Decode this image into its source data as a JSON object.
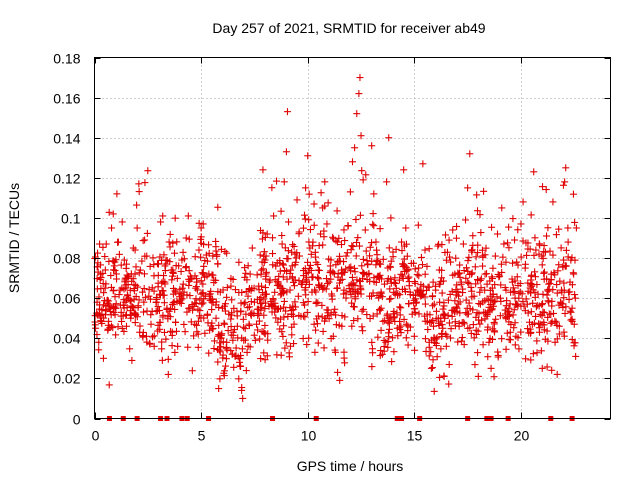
{
  "chart_data": {
    "type": "scatter",
    "title": "Day 257 of 2021, SRMTID for receiver ab49",
    "xlabel": "GPS time / hours",
    "ylabel": "SRMTID / TECUs",
    "xlim": [
      0,
      24.2
    ],
    "ylim": [
      0,
      0.18
    ],
    "xticks": [
      0,
      5,
      10,
      15,
      20
    ],
    "xtick_labels": [
      "0",
      "5",
      "10",
      "15",
      "20"
    ],
    "yticks": [
      0,
      0.02,
      0.04,
      0.06,
      0.08,
      0.1,
      0.12,
      0.14,
      0.16,
      0.18
    ],
    "ytick_labels": [
      "0",
      "0.02",
      "0.04",
      "0.06",
      "0.08",
      "0.1",
      "0.12",
      "0.14",
      "0.16",
      "0.18"
    ],
    "grid": true,
    "marker": "+",
    "marker_color": "#e00000",
    "data_extent": [
      0.0,
      22.6
    ],
    "zero_markers_x": [
      0.7,
      1.35,
      2.0,
      3.1,
      3.4,
      4.1,
      4.35,
      5.35,
      8.35,
      10.4,
      14.2,
      14.4,
      15.25,
      17.5,
      18.4,
      18.6,
      19.4,
      21.4,
      22.4
    ],
    "points": [
      [
        0.05,
        0.045
      ],
      [
        0.12,
        0.058
      ],
      [
        0.2,
        0.038
      ],
      [
        0.28,
        0.072
      ],
      [
        0.35,
        0.052
      ],
      [
        0.42,
        0.03
      ],
      [
        0.5,
        0.065
      ],
      [
        0.55,
        0.087
      ],
      [
        0.62,
        0.044
      ],
      [
        0.7,
        0.055
      ],
      [
        0.8,
        0.095
      ],
      [
        0.88,
        0.102
      ],
      [
        0.95,
        0.078
      ],
      [
        1.05,
        0.112
      ],
      [
        1.12,
        0.088
      ],
      [
        1.2,
        0.064
      ],
      [
        1.3,
        0.098
      ],
      [
        1.4,
        0.079
      ],
      [
        1.5,
        0.046
      ],
      [
        1.6,
        0.06
      ],
      [
        1.7,
        0.05
      ],
      [
        1.82,
        0.085
      ],
      [
        1.9,
        0.072
      ],
      [
        2.0,
        0.095
      ],
      [
        2.08,
        0.117
      ],
      [
        2.15,
        0.074
      ],
      [
        2.25,
        0.063
      ],
      [
        2.35,
        0.089
      ],
      [
        2.45,
        0.081
      ],
      [
        2.55,
        0.061
      ],
      [
        2.65,
        0.047
      ],
      [
        2.8,
        0.036
      ],
      [
        2.9,
        0.058
      ],
      [
        3.0,
        0.077
      ],
      [
        3.1,
        0.098
      ],
      [
        3.2,
        0.101
      ],
      [
        3.3,
        0.068
      ],
      [
        3.4,
        0.055
      ],
      [
        3.5,
        0.088
      ],
      [
        3.6,
        0.074
      ],
      [
        3.7,
        0.062
      ],
      [
        3.8,
        0.048
      ],
      [
        3.9,
        0.036
      ],
      [
        4.0,
        0.058
      ],
      [
        4.1,
        0.079
      ],
      [
        4.2,
        0.063
      ],
      [
        4.3,
        0.09
      ],
      [
        4.4,
        0.101
      ],
      [
        4.5,
        0.071
      ],
      [
        4.6,
        0.054
      ],
      [
        4.7,
        0.047
      ],
      [
        4.8,
        0.068
      ],
      [
        4.9,
        0.084
      ],
      [
        5.0,
        0.095
      ],
      [
        5.1,
        0.072
      ],
      [
        5.2,
        0.061
      ],
      [
        5.3,
        0.052
      ],
      [
        5.4,
        0.044
      ],
      [
        5.5,
        0.058
      ],
      [
        5.6,
        0.069
      ],
      [
        5.7,
        0.05
      ],
      [
        5.8,
        0.041
      ],
      [
        5.9,
        0.063
      ],
      [
        6.0,
        0.055
      ],
      [
        6.1,
        0.047
      ],
      [
        6.2,
        0.038
      ],
      [
        6.3,
        0.052
      ],
      [
        6.4,
        0.066
      ],
      [
        6.5,
        0.043
      ],
      [
        6.6,
        0.031
      ],
      [
        6.7,
        0.046
      ],
      [
        6.8,
        0.028
      ],
      [
        6.9,
        0.014
      ],
      [
        6.95,
        0.01
      ],
      [
        7.0,
        0.039
      ],
      [
        7.1,
        0.052
      ],
      [
        7.2,
        0.061
      ],
      [
        7.3,
        0.072
      ],
      [
        7.4,
        0.085
      ],
      [
        7.5,
        0.058
      ],
      [
        7.6,
        0.047
      ],
      [
        7.7,
        0.066
      ],
      [
        7.8,
        0.054
      ],
      [
        7.9,
        0.124
      ],
      [
        8.0,
        0.079
      ],
      [
        8.1,
        0.092
      ],
      [
        8.2,
        0.068
      ],
      [
        8.3,
        0.057
      ],
      [
        8.4,
        0.101
      ],
      [
        8.5,
        0.076
      ],
      [
        8.6,
        0.048
      ],
      [
        8.7,
        0.065
      ],
      [
        8.8,
        0.087
      ],
      [
        8.9,
        0.118
      ],
      [
        9.0,
        0.133
      ],
      [
        9.05,
        0.153
      ],
      [
        9.1,
        0.098
      ],
      [
        9.2,
        0.074
      ],
      [
        9.3,
        0.056
      ],
      [
        9.4,
        0.082
      ],
      [
        9.5,
        0.109
      ],
      [
        9.6,
        0.093
      ],
      [
        9.7,
        0.067
      ],
      [
        9.8,
        0.051
      ],
      [
        9.9,
        0.115
      ],
      [
        10.0,
        0.131
      ],
      [
        10.1,
        0.085
      ],
      [
        10.2,
        0.063
      ],
      [
        10.3,
        0.047
      ],
      [
        10.4,
        0.058
      ],
      [
        10.5,
        0.074
      ],
      [
        10.6,
        0.092
      ],
      [
        10.7,
        0.105
      ],
      [
        10.8,
        0.118
      ],
      [
        10.9,
        0.097
      ],
      [
        11.0,
        0.068
      ],
      [
        11.1,
        0.052
      ],
      [
        11.2,
        0.041
      ],
      [
        11.3,
        0.033
      ],
      [
        11.4,
        0.023
      ],
      [
        11.5,
        0.019
      ],
      [
        11.6,
        0.046
      ],
      [
        11.7,
        0.064
      ],
      [
        11.8,
        0.081
      ],
      [
        11.9,
        0.096
      ],
      [
        12.0,
        0.113
      ],
      [
        12.1,
        0.128
      ],
      [
        12.2,
        0.135
      ],
      [
        12.3,
        0.152
      ],
      [
        12.4,
        0.162
      ],
      [
        12.45,
        0.17
      ],
      [
        12.5,
        0.141
      ],
      [
        12.6,
        0.119
      ],
      [
        12.7,
        0.094
      ],
      [
        12.8,
        0.077
      ],
      [
        12.9,
        0.061
      ],
      [
        13.0,
        0.136
      ],
      [
        13.1,
        0.112
      ],
      [
        13.2,
        0.088
      ],
      [
        13.3,
        0.071
      ],
      [
        13.4,
        0.054
      ],
      [
        13.5,
        0.032
      ],
      [
        13.6,
        0.067
      ],
      [
        13.7,
        0.118
      ],
      [
        13.8,
        0.14
      ],
      [
        13.9,
        0.1
      ],
      [
        14.0,
        0.083
      ],
      [
        14.1,
        0.062
      ],
      [
        14.2,
        0.045
      ],
      [
        14.3,
        0.069
      ],
      [
        14.4,
        0.088
      ],
      [
        14.5,
        0.124
      ],
      [
        14.6,
        0.095
      ],
      [
        14.7,
        0.074
      ],
      [
        14.8,
        0.063
      ],
      [
        14.9,
        0.052
      ],
      [
        15.0,
        0.041
      ],
      [
        15.1,
        0.058
      ],
      [
        15.2,
        0.075
      ],
      [
        15.3,
        0.061
      ],
      [
        15.4,
        0.127
      ],
      [
        15.5,
        0.084
      ],
      [
        15.6,
        0.052
      ],
      [
        15.7,
        0.038
      ],
      [
        15.8,
        0.025
      ],
      [
        15.9,
        0.046
      ],
      [
        16.0,
        0.064
      ],
      [
        16.1,
        0.086
      ],
      [
        16.2,
        0.067
      ],
      [
        16.3,
        0.042
      ],
      [
        16.4,
        0.021
      ],
      [
        16.5,
        0.036
      ],
      [
        16.6,
        0.059
      ],
      [
        16.7,
        0.078
      ],
      [
        16.8,
        0.094
      ],
      [
        16.9,
        0.072
      ],
      [
        17.0,
        0.055
      ],
      [
        17.1,
        0.046
      ],
      [
        17.2,
        0.068
      ],
      [
        17.3,
        0.087
      ],
      [
        17.4,
        0.099
      ],
      [
        17.5,
        0.115
      ],
      [
        17.6,
        0.132
      ],
      [
        17.7,
        0.083
      ],
      [
        17.8,
        0.061
      ],
      [
        17.9,
        0.044
      ],
      [
        18.0,
        0.021
      ],
      [
        18.1,
        0.057
      ],
      [
        18.2,
        0.076
      ],
      [
        18.3,
        0.064
      ],
      [
        18.4,
        0.051
      ],
      [
        18.5,
        0.038
      ],
      [
        18.6,
        0.025
      ],
      [
        18.7,
        0.062
      ],
      [
        18.8,
        0.081
      ],
      [
        18.9,
        0.092
      ],
      [
        19.0,
        0.071
      ],
      [
        19.1,
        0.105
      ],
      [
        19.2,
        0.087
      ],
      [
        19.3,
        0.064
      ],
      [
        19.4,
        0.052
      ],
      [
        19.5,
        0.043
      ],
      [
        19.6,
        0.068
      ],
      [
        19.7,
        0.089
      ],
      [
        19.8,
        0.078
      ],
      [
        19.9,
        0.06
      ],
      [
        20.0,
        0.097
      ],
      [
        20.1,
        0.108
      ],
      [
        20.2,
        0.075
      ],
      [
        20.3,
        0.057
      ],
      [
        20.4,
        0.048
      ],
      [
        20.5,
        0.066
      ],
      [
        20.6,
        0.123
      ],
      [
        20.7,
        0.084
      ],
      [
        20.8,
        0.062
      ],
      [
        20.9,
        0.047
      ],
      [
        21.0,
        0.025
      ],
      [
        21.1,
        0.073
      ],
      [
        21.2,
        0.091
      ],
      [
        21.3,
        0.067
      ],
      [
        21.4,
        0.052
      ],
      [
        21.5,
        0.108
      ],
      [
        21.6,
        0.038
      ],
      [
        21.7,
        0.022
      ],
      [
        21.8,
        0.046
      ],
      [
        21.9,
        0.064
      ],
      [
        22.0,
        0.079
      ],
      [
        22.05,
        0.118
      ],
      [
        22.1,
        0.125
      ],
      [
        22.2,
        0.095
      ],
      [
        22.3,
        0.068
      ],
      [
        22.4,
        0.055
      ],
      [
        22.5,
        0.047
      ],
      [
        22.55,
        0.06
      ],
      [
        22.6,
        0.095
      ]
    ]
  },
  "colors": {
    "marker": "#e00000",
    "grid": "#a0a0a0",
    "axis": "#000000",
    "background": "#ffffff"
  }
}
